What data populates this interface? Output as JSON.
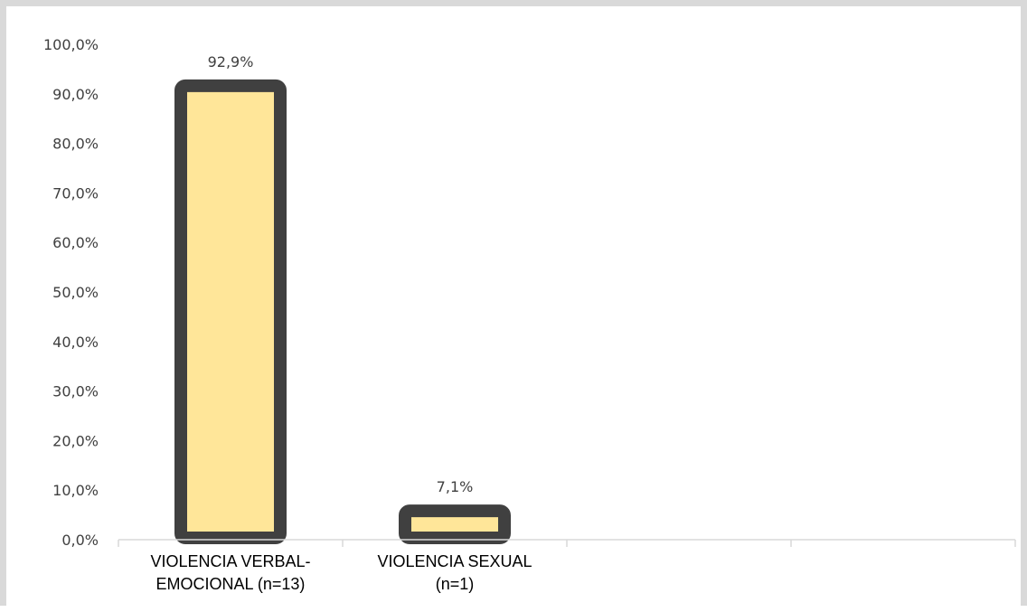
{
  "chart_data": {
    "type": "bar",
    "categories": [
      [
        "VIOLENCIA VERBAL-",
        "EMOCIONAL (n=13)"
      ],
      [
        "VIOLENCIA SEXUAL",
        "(n=1)"
      ],
      [
        "",
        ""
      ],
      [
        "",
        ""
      ]
    ],
    "values": [
      92.9,
      7.1,
      null,
      null
    ],
    "data_labels": [
      "92,9%",
      "7,1%",
      "",
      ""
    ],
    "yticks": [
      "0,0%",
      "10,0%",
      "20,0%",
      "30,0%",
      "40,0%",
      "50,0%",
      "60,0%",
      "70,0%",
      "80,0%",
      "90,0%",
      "100,0%"
    ],
    "ylim": [
      0,
      100
    ],
    "title": "",
    "xlabel": "",
    "ylabel": "",
    "grid": false,
    "colors": {
      "bar_fill": "#ffe699",
      "bar_border": "#404040",
      "axis": "#d9d9d9",
      "frame": "#d9d9d9"
    }
  }
}
